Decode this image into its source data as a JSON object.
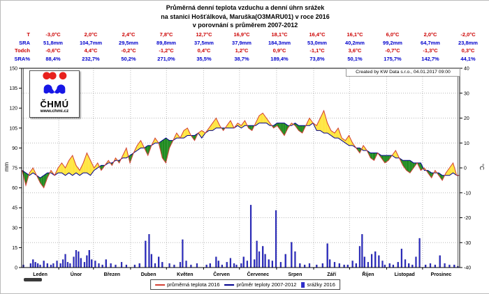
{
  "title": {
    "line1": "Průměrná denní teplota vzduchu a denní úhrn srážek",
    "line2": "na stanici Hošťálková, Maruška(O3MARU01) v roce 2016",
    "line3": "v porovnání s průměrem 2007-2012"
  },
  "stats_table": {
    "rows": [
      {
        "label": "T",
        "color": "red",
        "values": [
          "-3,0°C",
          "2,0°C",
          "2,4°C",
          "7,8°C",
          "12,7°C",
          "16,9°C",
          "18,1°C",
          "16,4°C",
          "16,1°C",
          "6,0°C",
          "2,0°C",
          "-2,0°C"
        ]
      },
      {
        "label": "SRA",
        "color": "blue",
        "values": [
          "51,8mm",
          "104,7mm",
          "29,5mm",
          "89,8mm",
          "37,5mm",
          "37,9mm",
          "184,3mm",
          "53,0mm",
          "40,2mm",
          "99,2mm",
          "64,7mm",
          "23,8mm"
        ]
      },
      {
        "label": "Todch",
        "color": "red",
        "values": [
          "-0,6°C",
          "4,4°C",
          "-0,2°C",
          "-1,2°C",
          "0,4°C",
          "1,2°C",
          "0,9°C",
          "-1,1°C",
          "3,6°C",
          "-0,7°C",
          "-1,3°C",
          "0,3°C"
        ]
      },
      {
        "label": "SRA%",
        "color": "blue",
        "values": [
          "88,4%",
          "232,7%",
          "50,2%",
          "271,0%",
          "35,5%",
          "38,7%",
          "189,4%",
          "73,8%",
          "50,1%",
          "175,7%",
          "142,7%",
          "44,1%"
        ]
      }
    ]
  },
  "logo": {
    "name": "ČHMÚ",
    "url": "www.chmi.cz"
  },
  "created_by": "Created by KW Data s.r.o., 04.01.2017 09:00",
  "legend": {
    "temp2016_label": "průměrná teplota 2016",
    "tempnorm_label": "průměr teploty 2007-2012",
    "precip_label": "srážky 2016"
  },
  "chart_data": {
    "type": "composite",
    "subtypes": [
      "line",
      "line",
      "bar",
      "area-between"
    ],
    "categories": [
      "Leden",
      "Únor",
      "Březen",
      "Duben",
      "Květen",
      "Červen",
      "Červenec",
      "Srpen",
      "Září",
      "Říjen",
      "Listopad",
      "Prosinec"
    ],
    "month_days": [
      31,
      29,
      31,
      30,
      31,
      30,
      31,
      31,
      30,
      31,
      30,
      31
    ],
    "left_axis": {
      "label": "mm",
      "min": 0,
      "max": 150,
      "step": 15,
      "ticks": [
        0,
        15,
        30,
        45,
        60,
        75,
        90,
        105,
        120,
        135,
        150
      ]
    },
    "right_axis": {
      "label": "°C",
      "min": -40,
      "max": 40,
      "step": 10,
      "ticks": [
        -40,
        -30,
        -20,
        -10,
        0,
        10,
        20,
        30,
        40
      ]
    },
    "grid": "dotted horizontal at every 10°C, vertical at month boundaries",
    "legend_position": "bottom-center",
    "sample_step_days": 3,
    "series": [
      {
        "name": "průměrná teplota 2016",
        "unit": "°C",
        "axis": "right",
        "color": "#d23f33",
        "monthly_means": [
          -3.0,
          2.0,
          2.4,
          7.8,
          12.7,
          16.9,
          18.1,
          16.4,
          16.1,
          6.0,
          2.0,
          -2.0
        ],
        "values": [
          -1,
          -7,
          -2,
          0,
          -3,
          -6,
          -8,
          -4,
          -1,
          -3,
          0,
          2,
          0,
          3,
          5,
          1,
          -1,
          2,
          6,
          3,
          0,
          2,
          -1,
          1,
          3,
          1,
          4,
          2,
          5,
          8,
          2,
          6,
          9,
          11,
          8,
          5,
          9,
          12,
          10,
          4,
          2,
          8,
          11,
          14,
          12,
          15,
          16,
          13,
          11,
          14,
          15,
          14,
          16,
          18,
          20,
          17,
          15,
          17,
          19,
          16,
          18,
          17,
          19,
          16,
          15,
          18,
          21,
          22,
          20,
          18,
          16,
          17,
          15,
          13,
          16,
          18,
          17,
          15,
          14,
          17,
          20,
          18,
          17,
          20,
          23,
          18,
          15,
          14,
          16,
          12,
          11,
          13,
          10,
          8,
          6,
          9,
          7,
          4,
          3,
          6,
          4,
          2,
          3,
          5,
          7,
          4,
          1,
          -1,
          -2,
          0,
          2,
          -1,
          0,
          -2,
          -4,
          -1,
          -3,
          -5,
          -2,
          0,
          2,
          -3
        ]
      },
      {
        "name": "průměr teploty 2007-2012",
        "unit": "°C",
        "axis": "right",
        "color": "#00008b",
        "monthly_means": [
          -2.4,
          -2.4,
          2.6,
          9.0,
          12.3,
          15.7,
          17.2,
          17.5,
          12.5,
          6.7,
          3.3,
          -2.3
        ],
        "values": [
          -1,
          -2,
          -3,
          -2,
          -3,
          -4,
          -3,
          -2,
          -2,
          -3,
          -2,
          -2,
          -3,
          -2,
          -3,
          -2,
          -3,
          -2,
          -2,
          -3,
          -1,
          0,
          1,
          1,
          2,
          2,
          3,
          3,
          4,
          4,
          5,
          6,
          7,
          8,
          8,
          9,
          9,
          10,
          10,
          11,
          12,
          11,
          11,
          12,
          12,
          12,
          13,
          13,
          13,
          14,
          12,
          14,
          15,
          15,
          16,
          16,
          16,
          16,
          16,
          16,
          17,
          16,
          17,
          17,
          17,
          17,
          18,
          18,
          18,
          17,
          17,
          18,
          18,
          18,
          17,
          17,
          18,
          17,
          17,
          17,
          17,
          18,
          15,
          15,
          14,
          14,
          13,
          12,
          12,
          11,
          10,
          9,
          9,
          8,
          8,
          7,
          7,
          6,
          6,
          6,
          5,
          5,
          5,
          5,
          4,
          4,
          3,
          3,
          3,
          2,
          2,
          2,
          -1,
          -1,
          -2,
          -2,
          -2,
          -3,
          -3,
          -3,
          -2,
          -3
        ]
      },
      {
        "name": "srážky 2016",
        "unit": "mm",
        "axis": "left",
        "color": "#2d2dc9",
        "monthly_totals": [
          51.8,
          104.7,
          29.5,
          89.8,
          37.5,
          37.9,
          184.3,
          53.0,
          40.2,
          99.2,
          64.7,
          23.8
        ],
        "bars_day_mm": [
          [
            2,
            2
          ],
          [
            8,
            3
          ],
          [
            10,
            6
          ],
          [
            12,
            4
          ],
          [
            14,
            3
          ],
          [
            16,
            2
          ],
          [
            19,
            5
          ],
          [
            22,
            3
          ],
          [
            25,
            2
          ],
          [
            27,
            3
          ],
          [
            30,
            5
          ],
          [
            33,
            3
          ],
          [
            35,
            6
          ],
          [
            37,
            10
          ],
          [
            39,
            4
          ],
          [
            41,
            3
          ],
          [
            44,
            8
          ],
          [
            46,
            13
          ],
          [
            48,
            12
          ],
          [
            50,
            7
          ],
          [
            53,
            4
          ],
          [
            55,
            9
          ],
          [
            57,
            13
          ],
          [
            59,
            6
          ],
          [
            62,
            5
          ],
          [
            65,
            3
          ],
          [
            68,
            2
          ],
          [
            71,
            6
          ],
          [
            75,
            3
          ],
          [
            79,
            2
          ],
          [
            84,
            4
          ],
          [
            88,
            2
          ],
          [
            95,
            2
          ],
          [
            99,
            3
          ],
          [
            104,
            20
          ],
          [
            107,
            25
          ],
          [
            109,
            10
          ],
          [
            112,
            3
          ],
          [
            115,
            8
          ],
          [
            118,
            4
          ],
          [
            124,
            3
          ],
          [
            128,
            2
          ],
          [
            133,
            4
          ],
          [
            135,
            21
          ],
          [
            138,
            5
          ],
          [
            142,
            2
          ],
          [
            147,
            3
          ],
          [
            155,
            2
          ],
          [
            158,
            3
          ],
          [
            163,
            8
          ],
          [
            165,
            5
          ],
          [
            168,
            2
          ],
          [
            172,
            4
          ],
          [
            175,
            7
          ],
          [
            178,
            3
          ],
          [
            180,
            2
          ],
          [
            184,
            3
          ],
          [
            186,
            8
          ],
          [
            189,
            5
          ],
          [
            192,
            47
          ],
          [
            195,
            6
          ],
          [
            197,
            20
          ],
          [
            199,
            12
          ],
          [
            202,
            16
          ],
          [
            204,
            10
          ],
          [
            207,
            6
          ],
          [
            210,
            5
          ],
          [
            213,
            43
          ],
          [
            217,
            4
          ],
          [
            221,
            10
          ],
          [
            226,
            19
          ],
          [
            229,
            12
          ],
          [
            233,
            3
          ],
          [
            237,
            2
          ],
          [
            241,
            3
          ],
          [
            247,
            2
          ],
          [
            252,
            3
          ],
          [
            256,
            18
          ],
          [
            258,
            6
          ],
          [
            262,
            4
          ],
          [
            266,
            3
          ],
          [
            270,
            2
          ],
          [
            273,
            2
          ],
          [
            277,
            5
          ],
          [
            280,
            3
          ],
          [
            283,
            16
          ],
          [
            285,
            25
          ],
          [
            287,
            8
          ],
          [
            290,
            4
          ],
          [
            293,
            10
          ],
          [
            296,
            12
          ],
          [
            299,
            9
          ],
          [
            302,
            5
          ],
          [
            304,
            2
          ],
          [
            308,
            3
          ],
          [
            311,
            2
          ],
          [
            315,
            4
          ],
          [
            318,
            14
          ],
          [
            321,
            6
          ],
          [
            324,
            3
          ],
          [
            327,
            2
          ],
          [
            330,
            8
          ],
          [
            333,
            22
          ],
          [
            338,
            2
          ],
          [
            342,
            3
          ],
          [
            346,
            2
          ],
          [
            350,
            9
          ],
          [
            354,
            3
          ],
          [
            358,
            2
          ],
          [
            362,
            2
          ],
          [
            365,
            1
          ]
        ]
      }
    ],
    "fills": {
      "above_normal_color": "#ffe53d",
      "below_normal_color": "#1e8a1e",
      "meaning": "yellow = 2016 above 2007-2012 average, green = below"
    }
  }
}
